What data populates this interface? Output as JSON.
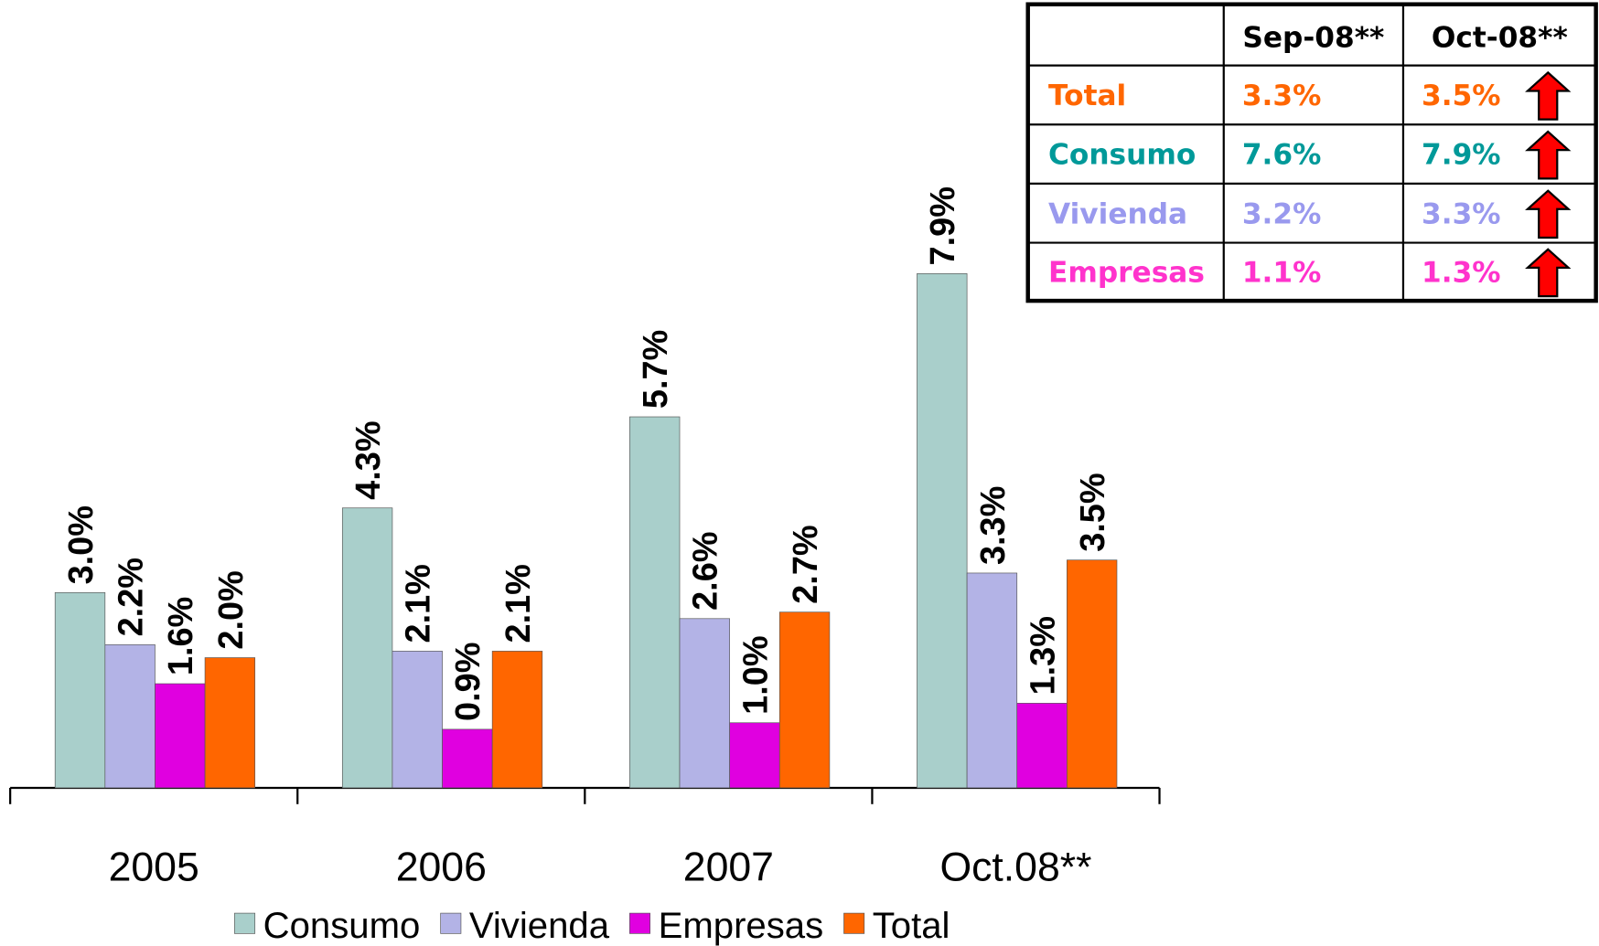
{
  "chart_data": {
    "type": "bar",
    "categories": [
      "2005",
      "2006",
      "2007",
      "Oct.08**"
    ],
    "series": [
      {
        "name": "Consumo",
        "color": "#a9cfcb",
        "values": [
          3.0,
          4.3,
          5.7,
          7.9
        ],
        "value_labels": [
          "3.0%",
          "4.3%",
          "5.7%",
          "7.9%"
        ]
      },
      {
        "name": "Vivienda",
        "color": "#b3b3e6",
        "values": [
          2.2,
          2.1,
          2.6,
          3.3
        ],
        "value_labels": [
          "2.2%",
          "2.1%",
          "2.6%",
          "3.3%"
        ]
      },
      {
        "name": "Empresas",
        "color": "#e000e0",
        "values": [
          1.6,
          0.9,
          1.0,
          1.3
        ],
        "value_labels": [
          "1.6%",
          "0.9%",
          "1.0%",
          "1.3%"
        ]
      },
      {
        "name": "Total",
        "color": "#ff6600",
        "values": [
          2.0,
          2.1,
          2.7,
          3.5
        ],
        "value_labels": [
          "2.0%",
          "2.1%",
          "2.7%",
          "3.5%"
        ]
      }
    ],
    "ylim": [
      0,
      12.1
    ],
    "legend": "bottom"
  },
  "table": {
    "columns": [
      "Sep-08**",
      "Oct-08**"
    ],
    "rows": [
      {
        "label": "Total",
        "values": [
          "3.3%",
          "3.5%"
        ]
      },
      {
        "label": "Consumo",
        "values": [
          "7.6%",
          "7.9%"
        ]
      },
      {
        "label": "Vivienda",
        "values": [
          "3.2%",
          "3.3%"
        ]
      },
      {
        "label": "Empresas",
        "values": [
          "1.1%",
          "1.3%"
        ]
      }
    ]
  }
}
